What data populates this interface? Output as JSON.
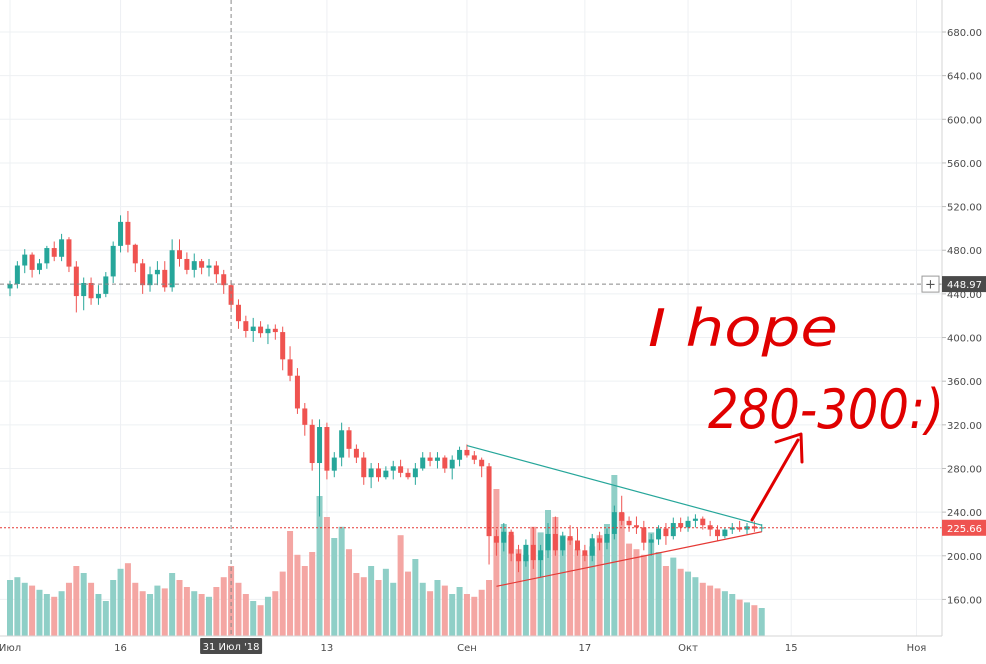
{
  "colors": {
    "up": "#26a69a",
    "down": "#ef5350",
    "up_volume": "#8fcfc7",
    "down_volume": "#f4a6a3",
    "grid": "#eef0f3",
    "crosshair": "#888888",
    "current_price_line": "#e53935",
    "annotation": "#e00000",
    "upper_trendline": "#26a69a",
    "lower_trendline": "#e53935",
    "crosshair_badge": "#4a4a4a",
    "price_badge": "#ef5350"
  },
  "chart_data": {
    "type": "candlestick",
    "price_axis": {
      "ticks": [
        "680.00",
        "640.00",
        "600.00",
        "560.00",
        "520.00",
        "480.00",
        "440.00",
        "400.00",
        "360.00",
        "320.00",
        "280.00",
        "240.00",
        "200.00",
        "160.00"
      ],
      "tick_values": [
        680,
        640,
        600,
        560,
        520,
        480,
        440,
        400,
        360,
        320,
        280,
        240,
        200,
        160
      ]
    },
    "time_axis": {
      "ticks": [
        {
          "label": "Июл",
          "day": 0
        },
        {
          "label": "16",
          "day": 15
        },
        {
          "label": "13",
          "day": 43
        },
        {
          "label": "Сен",
          "day": 62
        },
        {
          "label": "17",
          "day": 78
        },
        {
          "label": "Окт",
          "day": 92
        },
        {
          "label": "15",
          "day": 106
        },
        {
          "label": "Ноя",
          "day": 123
        }
      ]
    },
    "crosshair": {
      "time_label": "31 Июл '18",
      "price_label": "448.97",
      "price": 448.97,
      "day": 30
    },
    "last_price": {
      "label": "225.66",
      "value": 225.66
    },
    "candles": [
      [
        445,
        452,
        438,
        449
      ],
      [
        449,
        470,
        445,
        466
      ],
      [
        466,
        481,
        459,
        476
      ],
      [
        476,
        478,
        455,
        462
      ],
      [
        462,
        472,
        458,
        468
      ],
      [
        468,
        484,
        463,
        482
      ],
      [
        482,
        488,
        470,
        474
      ],
      [
        474,
        495,
        470,
        490
      ],
      [
        490,
        492,
        460,
        465
      ],
      [
        465,
        470,
        423,
        438
      ],
      [
        438,
        455,
        425,
        450
      ],
      [
        450,
        455,
        430,
        436
      ],
      [
        436,
        448,
        430,
        440
      ],
      [
        440,
        460,
        437,
        456
      ],
      [
        456,
        488,
        450,
        484
      ],
      [
        484,
        512,
        478,
        506
      ],
      [
        506,
        516,
        478,
        485
      ],
      [
        485,
        486,
        460,
        468
      ],
      [
        468,
        472,
        440,
        448
      ],
      [
        448,
        465,
        442,
        458
      ],
      [
        458,
        470,
        448,
        462
      ],
      [
        462,
        470,
        442,
        446
      ],
      [
        446,
        490,
        442,
        480
      ],
      [
        480,
        490,
        465,
        472
      ],
      [
        472,
        478,
        458,
        462
      ],
      [
        462,
        477,
        455,
        470
      ],
      [
        470,
        472,
        458,
        464
      ],
      [
        464,
        472,
        456,
        466
      ],
      [
        466,
        470,
        450,
        458
      ],
      [
        458,
        462,
        440,
        448
      ],
      [
        448,
        452,
        425,
        430
      ],
      [
        430,
        435,
        408,
        415
      ],
      [
        415,
        420,
        400,
        406
      ],
      [
        406,
        418,
        396,
        410
      ],
      [
        410,
        415,
        400,
        404
      ],
      [
        404,
        412,
        394,
        408
      ],
      [
        408,
        412,
        398,
        405
      ],
      [
        405,
        410,
        370,
        380
      ],
      [
        380,
        392,
        360,
        365
      ],
      [
        365,
        372,
        330,
        335
      ],
      [
        335,
        340,
        310,
        320
      ],
      [
        320,
        325,
        278,
        285
      ],
      [
        285,
        325,
        236,
        318
      ],
      [
        318,
        322,
        270,
        278
      ],
      [
        278,
        295,
        272,
        290
      ],
      [
        290,
        322,
        282,
        315
      ],
      [
        315,
        318,
        290,
        298
      ],
      [
        298,
        302,
        285,
        290
      ],
      [
        290,
        295,
        265,
        272
      ],
      [
        272,
        285,
        262,
        280
      ],
      [
        280,
        285,
        268,
        272
      ],
      [
        272,
        282,
        270,
        278
      ],
      [
        278,
        287,
        270,
        282
      ],
      [
        282,
        288,
        272,
        276
      ],
      [
        276,
        280,
        270,
        272
      ],
      [
        272,
        285,
        265,
        280
      ],
      [
        280,
        295,
        278,
        290
      ],
      [
        290,
        295,
        282,
        287
      ],
      [
        287,
        295,
        280,
        290
      ],
      [
        290,
        292,
        276,
        280
      ],
      [
        280,
        292,
        270,
        288
      ],
      [
        288,
        300,
        282,
        297
      ],
      [
        297,
        302,
        290,
        292
      ],
      [
        292,
        296,
        284,
        288
      ],
      [
        288,
        290,
        272,
        282
      ],
      [
        282,
        285,
        192,
        218
      ],
      [
        218,
        224,
        200,
        212
      ],
      [
        212,
        230,
        204,
        222
      ],
      [
        222,
        224,
        195,
        202
      ],
      [
        202,
        210,
        185,
        195
      ],
      [
        195,
        215,
        190,
        210
      ],
      [
        210,
        226,
        188,
        196
      ],
      [
        196,
        210,
        180,
        205
      ],
      [
        205,
        230,
        198,
        220
      ],
      [
        220,
        236,
        200,
        205
      ],
      [
        205,
        222,
        200,
        218
      ],
      [
        218,
        228,
        210,
        214
      ],
      [
        214,
        225,
        200,
        205
      ],
      [
        205,
        210,
        195,
        200
      ],
      [
        200,
        220,
        195,
        216
      ],
      [
        216,
        222,
        205,
        212
      ],
      [
        212,
        225,
        206,
        220
      ],
      [
        220,
        246,
        215,
        240
      ],
      [
        240,
        255,
        228,
        232
      ],
      [
        232,
        236,
        222,
        228
      ],
      [
        228,
        236,
        220,
        226
      ],
      [
        226,
        232,
        205,
        212
      ],
      [
        212,
        220,
        200,
        215
      ],
      [
        215,
        228,
        210,
        225
      ],
      [
        225,
        230,
        210,
        218
      ],
      [
        218,
        235,
        215,
        230
      ],
      [
        230,
        235,
        222,
        226
      ],
      [
        226,
        236,
        222,
        232
      ],
      [
        232,
        238,
        226,
        234
      ],
      [
        234,
        236,
        224,
        228
      ],
      [
        228,
        232,
        218,
        224
      ],
      [
        224,
        228,
        214,
        218
      ],
      [
        218,
        226,
        216,
        224
      ],
      [
        224,
        230,
        220,
        226
      ],
      [
        226,
        232,
        222,
        224
      ],
      [
        224,
        230,
        220,
        227
      ],
      [
        227,
        232,
        222,
        225
      ],
      [
        225,
        229,
        222,
        226
      ]
    ],
    "volumes": [
      0.4,
      0.42,
      0.38,
      0.36,
      0.33,
      0.3,
      0.28,
      0.32,
      0.38,
      0.5,
      0.45,
      0.38,
      0.3,
      0.25,
      0.4,
      0.48,
      0.52,
      0.38,
      0.32,
      0.3,
      0.36,
      0.34,
      0.45,
      0.4,
      0.35,
      0.32,
      0.3,
      0.28,
      0.35,
      0.42,
      0.5,
      0.38,
      0.3,
      0.25,
      0.22,
      0.28,
      0.32,
      0.46,
      0.75,
      0.58,
      0.5,
      0.6,
      1.0,
      0.85,
      0.7,
      0.78,
      0.62,
      0.45,
      0.42,
      0.5,
      0.4,
      0.48,
      0.38,
      0.72,
      0.46,
      0.55,
      0.38,
      0.32,
      0.4,
      0.36,
      0.3,
      0.35,
      0.3,
      0.28,
      0.33,
      0.4,
      1.05,
      0.8,
      0.72,
      0.62,
      0.58,
      0.78,
      0.74,
      0.9,
      0.85,
      0.72,
      0.7,
      0.62,
      0.58,
      0.64,
      0.72,
      0.8,
      1.15,
      0.88,
      0.66,
      0.62,
      0.58,
      0.74,
      0.6,
      0.5,
      0.56,
      0.48,
      0.46,
      0.42,
      0.38,
      0.36,
      0.34,
      0.32,
      0.3,
      0.26,
      0.24,
      0.22,
      0.2
    ],
    "trendlines": [
      {
        "name": "upper",
        "from": {
          "day": 62,
          "price": 301
        },
        "to": {
          "day": 102,
          "price": 228
        }
      },
      {
        "name": "lower",
        "from": {
          "day": 66,
          "price": 172
        },
        "to": {
          "day": 102,
          "price": 222
        }
      }
    ]
  },
  "annotation": {
    "line1": "I hope",
    "line2": "280-300:)"
  },
  "toolbar": {
    "crosshair_plus": "+"
  }
}
